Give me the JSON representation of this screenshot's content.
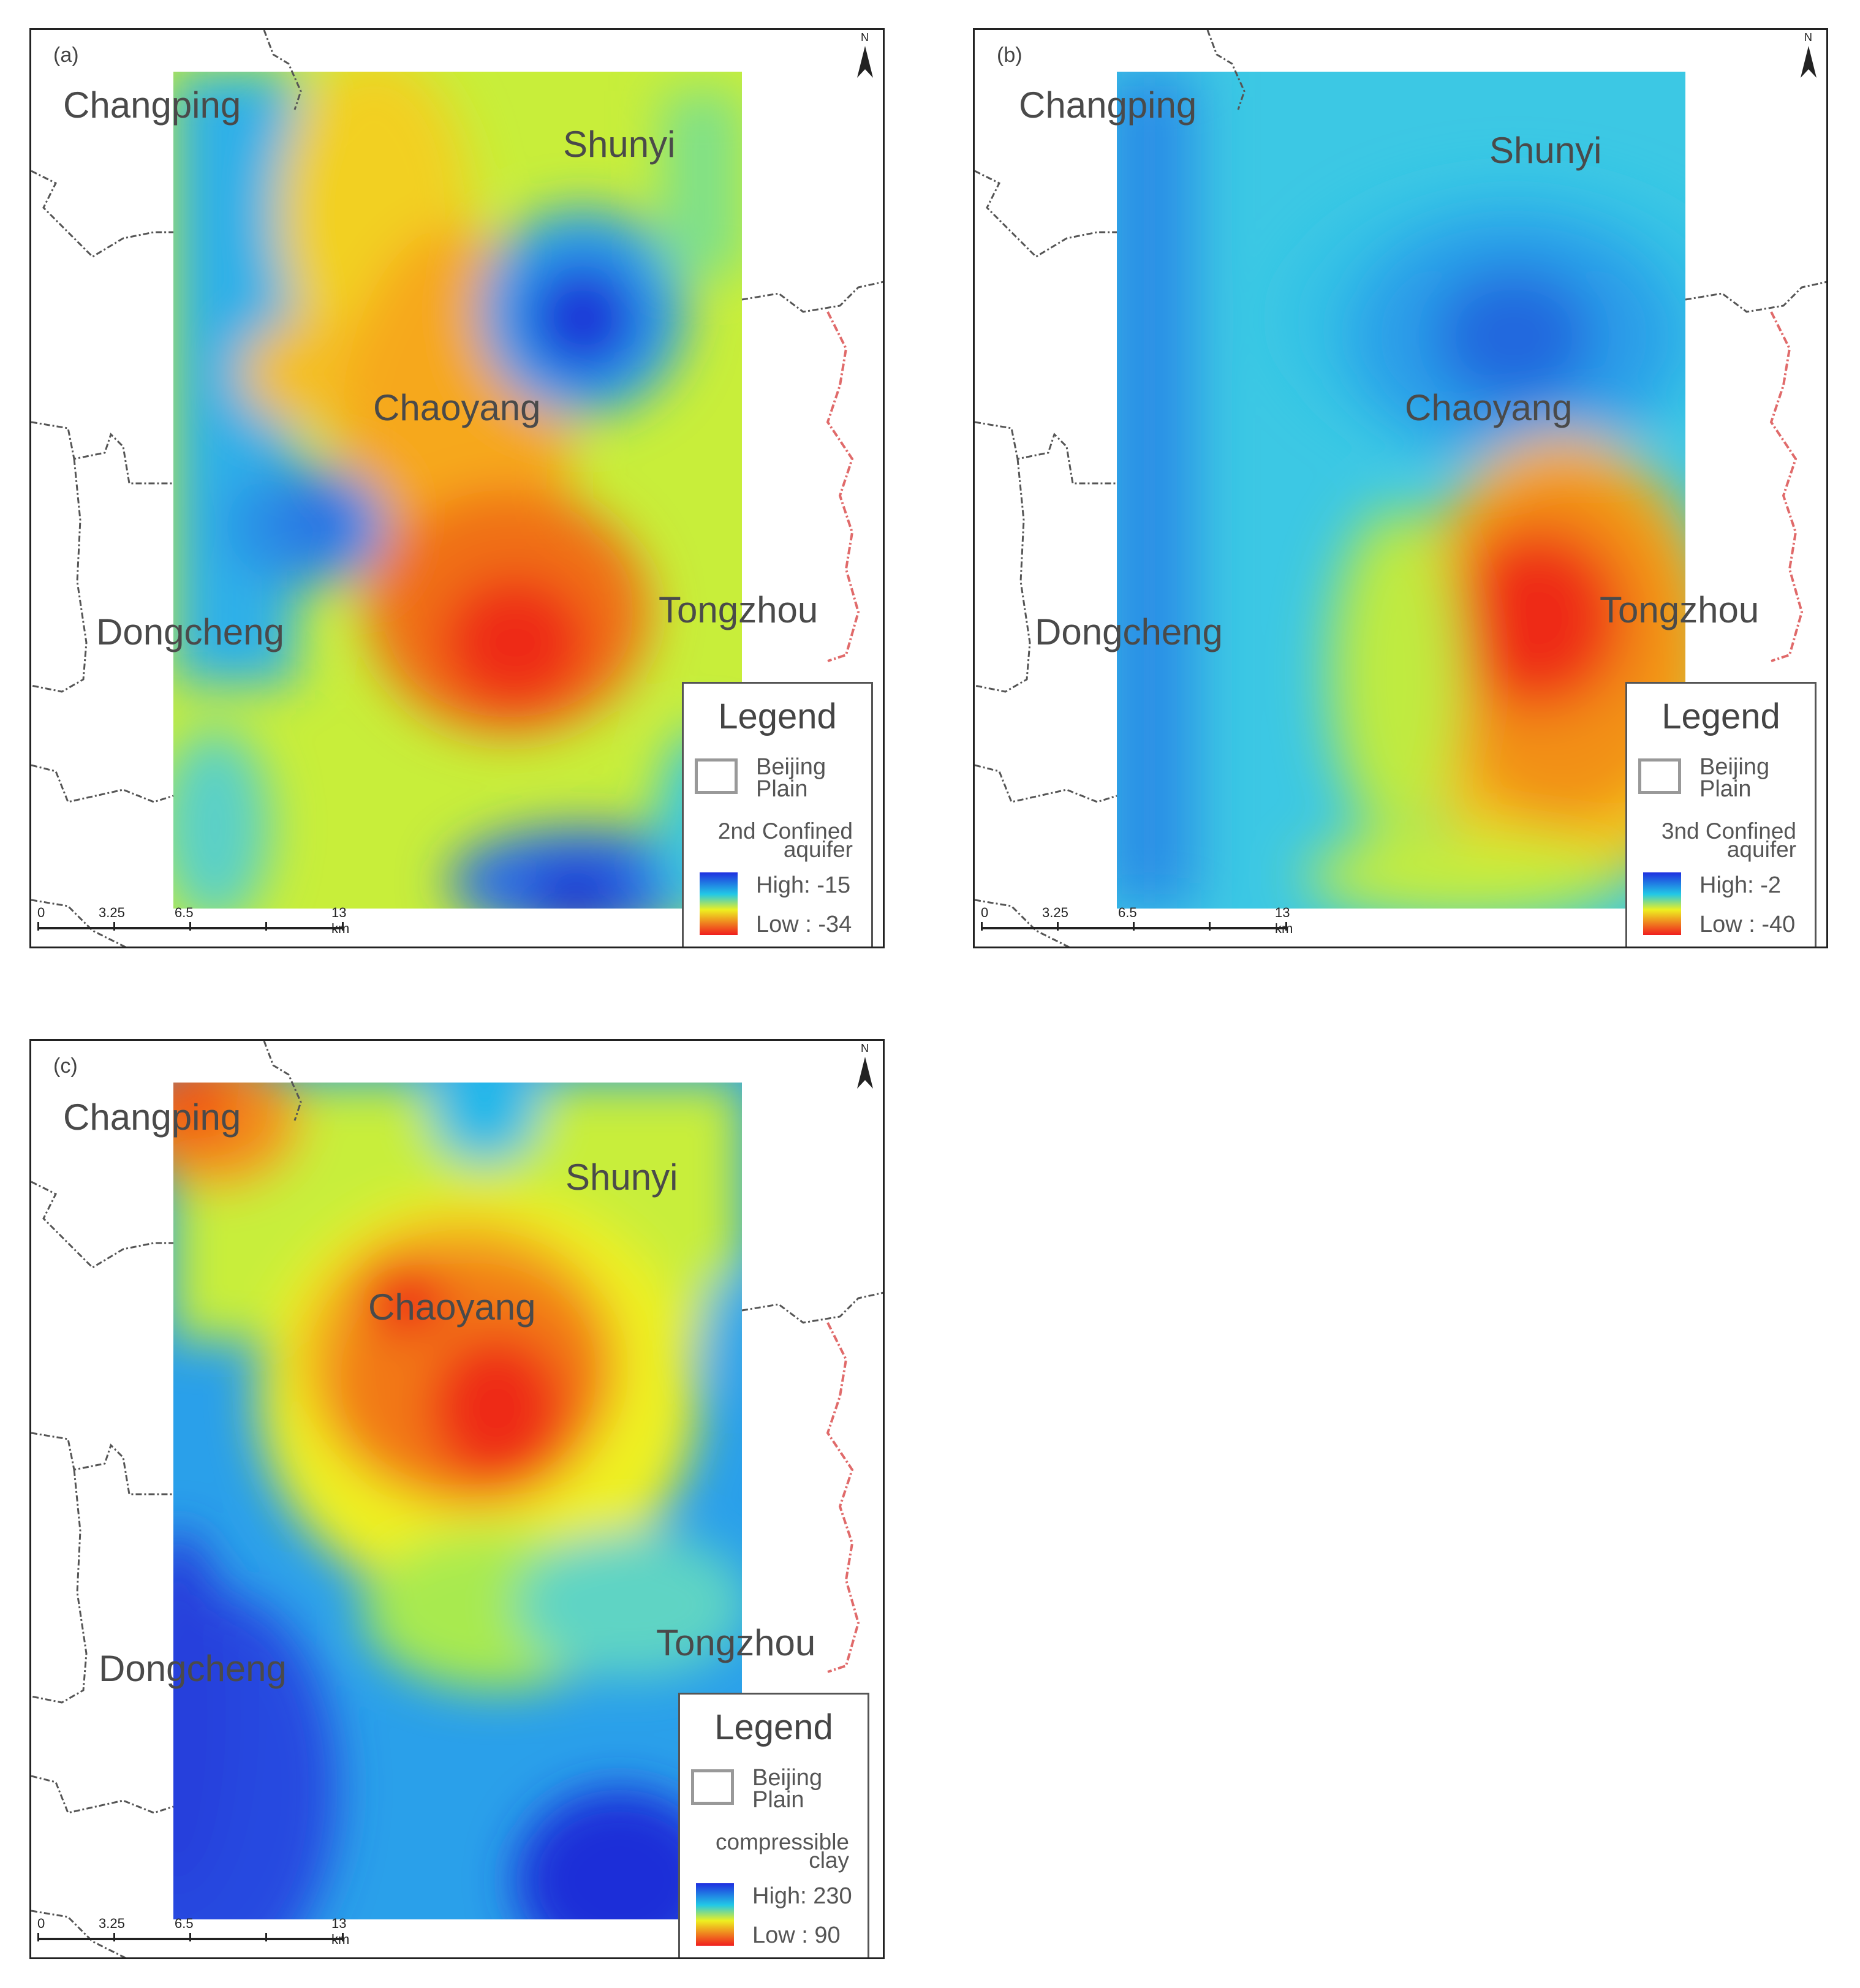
{
  "panels": [
    {
      "letter": "(a)",
      "places": {
        "changping": "Changping",
        "shunyi": "Shunyi",
        "chaoyang": "Chaoyang",
        "tongzhou": "Tongzhou",
        "dongcheng": "Dongcheng"
      },
      "legend": {
        "title": "Legend",
        "boundary_label": "Beijing Plain",
        "layer_label": "2nd Confined aquifer",
        "high_label": "High: -15",
        "low_label": "Low : -34"
      },
      "scale": {
        "t0": "0",
        "t1": "3.25",
        "t2": "6.5",
        "t3": "13 km"
      },
      "north": "N"
    },
    {
      "letter": "(b)",
      "places": {
        "changping": "Changping",
        "shunyi": "Shunyi",
        "chaoyang": "Chaoyang",
        "tongzhou": "Tongzhou",
        "dongcheng": "Dongcheng"
      },
      "legend": {
        "title": "Legend",
        "boundary_label": "Beijing Plain",
        "layer_label": "3nd Confined aquifer",
        "high_label": "High: -2",
        "low_label": "Low : -40"
      },
      "scale": {
        "t0": "0",
        "t1": "3.25",
        "t2": "6.5",
        "t3": "13 km"
      },
      "north": "N"
    },
    {
      "letter": "(c)",
      "places": {
        "changping": "Changping",
        "shunyi": "Shunyi",
        "chaoyang": "Chaoyang",
        "tongzhou": "Tongzhou",
        "dongcheng": "Dongcheng"
      },
      "legend": {
        "title": "Legend",
        "boundary_label": "Beijing Plain",
        "layer_label": "compressible clay",
        "high_label": "High: 230",
        "low_label": "Low : 90"
      },
      "scale": {
        "t0": "0",
        "t1": "3.25",
        "t2": "6.5",
        "t3": "13 km"
      },
      "north": "N"
    }
  ],
  "colors": {
    "high": "#1f2fe0",
    "mid_high": "#22c8e6",
    "mid": "#eef020",
    "low": "#f01e1e",
    "boundary": "#555555",
    "boundary_red": "#e06a6a"
  }
}
